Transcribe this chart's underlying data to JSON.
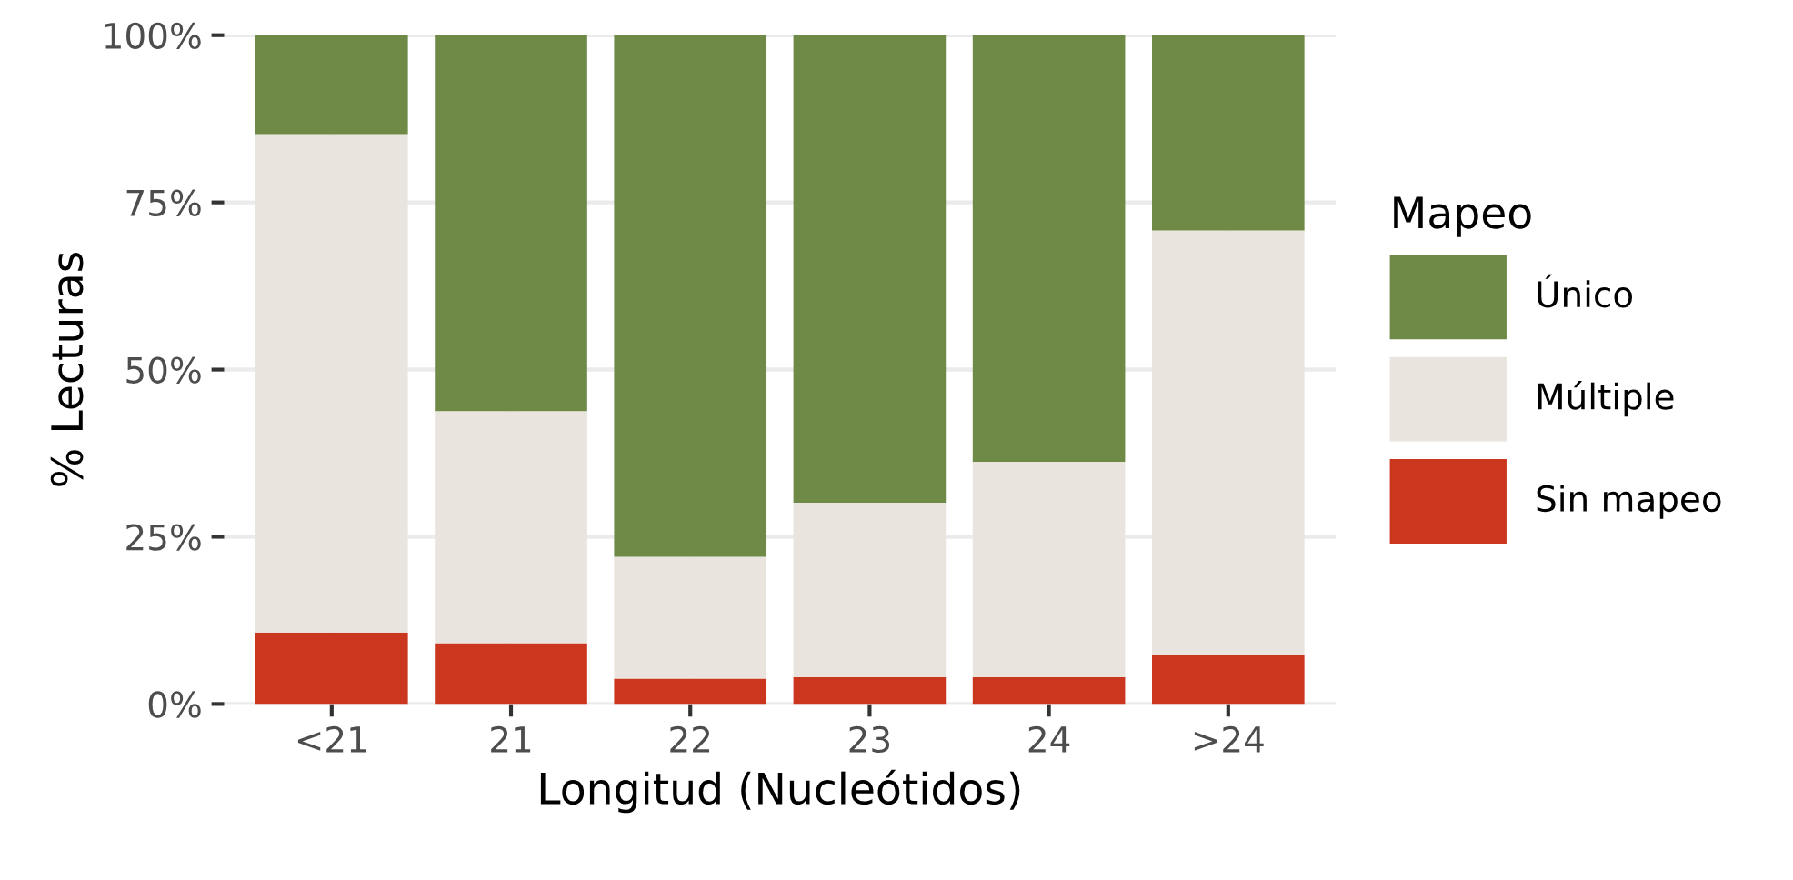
{
  "chart_data": {
    "type": "bar",
    "stacked": true,
    "xlabel": "Longitud (Nucleótidos)",
    "ylabel": "% Lecturas",
    "legend_title": "Mapeo",
    "legend": "right",
    "categories": [
      "<21",
      "21",
      "22",
      "23",
      "24",
      ">24"
    ],
    "series": [
      {
        "name": "Sin mapeo",
        "color": "#cb361f",
        "values": [
          10.7,
          9.1,
          3.8,
          4.0,
          4.0,
          7.4
        ]
      },
      {
        "name": "Múltiple",
        "color": "#e9e5de",
        "values": [
          74.5,
          34.7,
          18.2,
          26.1,
          32.2,
          63.4
        ]
      },
      {
        "name": "Único",
        "color": "#6f8a47",
        "values": [
          14.8,
          56.2,
          78.0,
          69.9,
          63.8,
          29.2
        ]
      }
    ],
    "ylim": [
      0,
      100
    ],
    "yticks": [
      {
        "value": 0,
        "label": "0%"
      },
      {
        "value": 25,
        "label": "25%"
      },
      {
        "value": 50,
        "label": "50%"
      },
      {
        "value": 75,
        "label": "75%"
      },
      {
        "value": 100,
        "label": "100%"
      }
    ],
    "grid": true
  }
}
